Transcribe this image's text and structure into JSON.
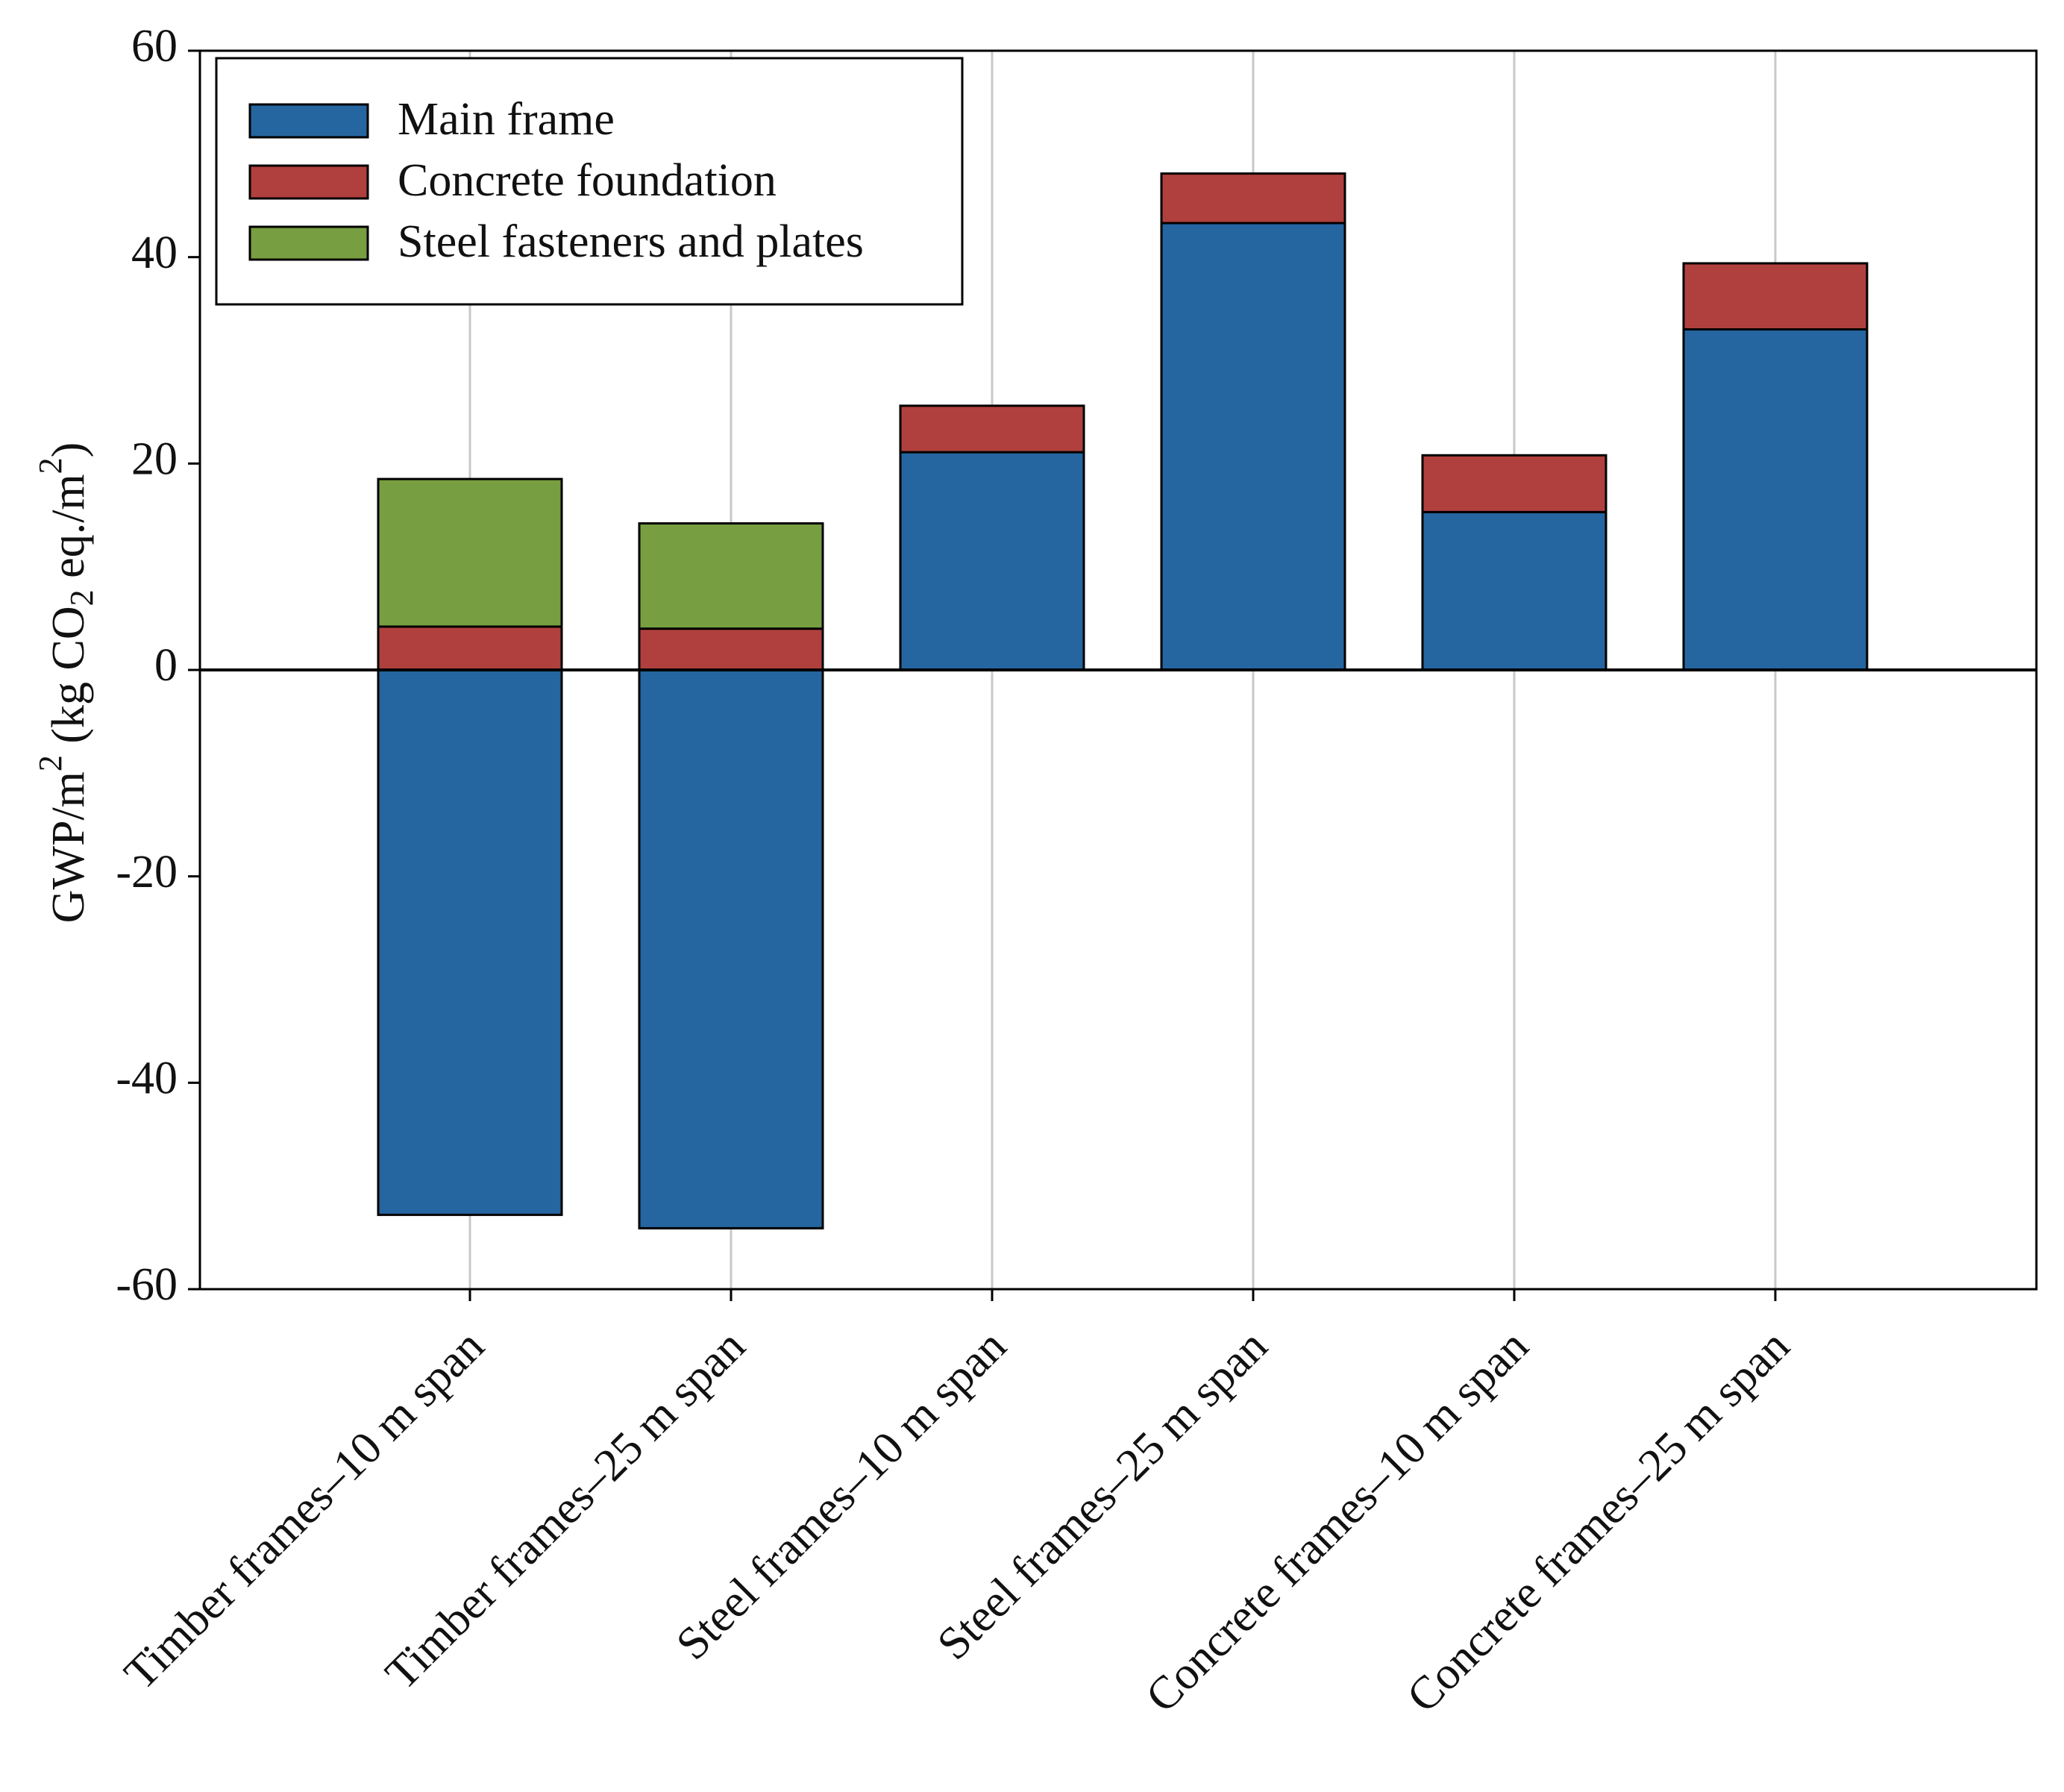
{
  "chart_data": {
    "type": "bar",
    "stacked": true,
    "title": "",
    "xlabel": "",
    "ylabel": {
      "prefix": "GWP/m",
      "sup1": "2",
      "middle": " (kg CO",
      "sub": "2",
      "middle2": " eq./m",
      "sup2": "2",
      "suffix": ")"
    },
    "ylim": [
      -60,
      60
    ],
    "yticks": [
      "-60",
      "-40",
      "-20",
      "0",
      "20",
      "40",
      "60"
    ],
    "grid": "vertical",
    "legend_position": "top-left",
    "categories": [
      "Timber frames–10 m span",
      "Timber frames–25 m span",
      "Steel frames–10 m span",
      "Steel frames–25 m span",
      "Concrete frames–10 m span",
      "Concrete frames–25 m span"
    ],
    "series": [
      {
        "name": "Main frame",
        "color": "#2565A0",
        "values": [
          -52.8,
          -54.1,
          21.1,
          43.3,
          15.3,
          33.0
        ]
      },
      {
        "name": "Concrete foundation",
        "color": "#B0403E",
        "values": [
          4.2,
          4.0,
          4.5,
          4.8,
          5.5,
          6.4
        ]
      },
      {
        "name": "Steel fasteners and plates",
        "color": "#779E40",
        "values": [
          14.3,
          10.2,
          0,
          0,
          0,
          0
        ]
      }
    ]
  }
}
